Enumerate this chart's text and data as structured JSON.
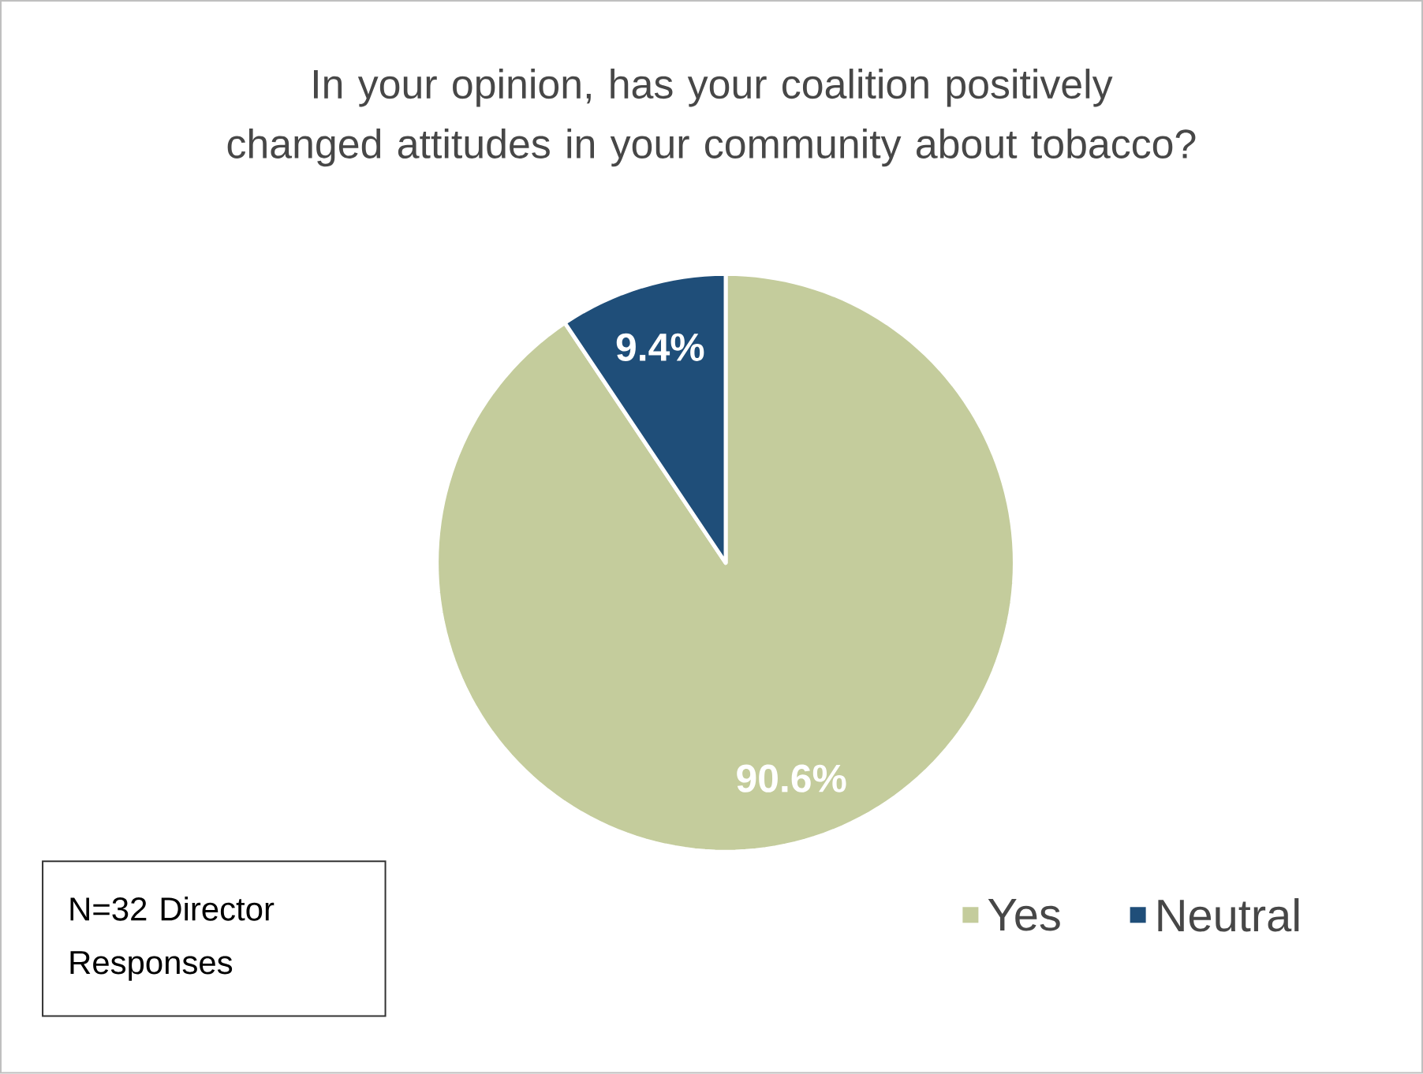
{
  "chart_data": {
    "type": "pie",
    "title": "In your opinion, has your coalition positively changed attitudes in your community about tobacco?",
    "categories": [
      "Yes",
      "Neutral"
    ],
    "values": [
      90.6,
      9.4
    ],
    "colors": [
      "#c4cc9c",
      "#1f4e79"
    ],
    "value_labels": [
      "90.6%",
      "9.4%"
    ],
    "legend": "bottom",
    "annotations": [
      "N=32 Director Responses"
    ]
  }
}
